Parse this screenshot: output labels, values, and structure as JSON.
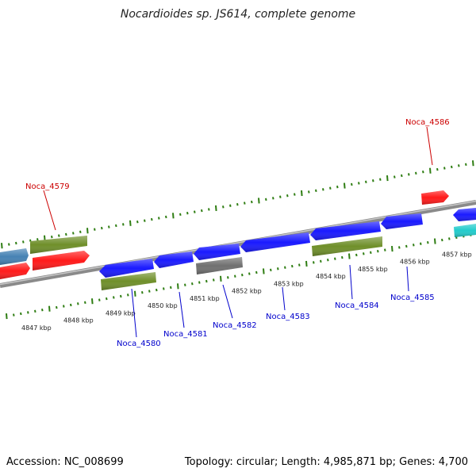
{
  "title": "Nocardioides sp. JS614, complete genome",
  "footer": {
    "accession": "Accession: NC_008699",
    "summary": "Topology: circular; Length: 4,985,871 bp; Genes: 4,700"
  },
  "colors": {
    "backbone": "#8a8a8a",
    "tick": "#2e7d12",
    "red": "#ff1a1a",
    "olive": "#6f8f2a",
    "blue": "#1a1aff",
    "steel": "#4682b4",
    "gray": "#707070",
    "cyan": "#22cccc",
    "label_red": "#cc0000",
    "label_blue": "#0000cc"
  },
  "ticks": [
    {
      "kbp": 4847,
      "label": "4847 kbp"
    },
    {
      "kbp": 4848,
      "label": "4848 kbp"
    },
    {
      "kbp": 4849,
      "label": "4849 kbp"
    },
    {
      "kbp": 4850,
      "label": "4850 kbp"
    },
    {
      "kbp": 4851,
      "label": "4851 kbp"
    },
    {
      "kbp": 4852,
      "label": "4852 kbp"
    },
    {
      "kbp": 4853,
      "label": "4853 kbp"
    },
    {
      "kbp": 4854,
      "label": "4854 kbp"
    },
    {
      "kbp": 4855,
      "label": "4855 kbp"
    },
    {
      "kbp": 4856,
      "label": "4856 kbp"
    },
    {
      "kbp": 4857,
      "label": "4857 kbp"
    }
  ],
  "genes": [
    {
      "label": "Noca_4579",
      "color": "red"
    },
    {
      "label": "Noca_4580",
      "color": "blue"
    },
    {
      "label": "Noca_4581",
      "color": "blue"
    },
    {
      "label": "Noca_4582",
      "color": "gray"
    },
    {
      "label": "Noca_4583",
      "color": "blue"
    },
    {
      "label": "Noca_4584",
      "color": "blue"
    },
    {
      "label": "Noca_4585",
      "color": "blue"
    },
    {
      "label": "Noca_4586",
      "color": "red"
    }
  ]
}
